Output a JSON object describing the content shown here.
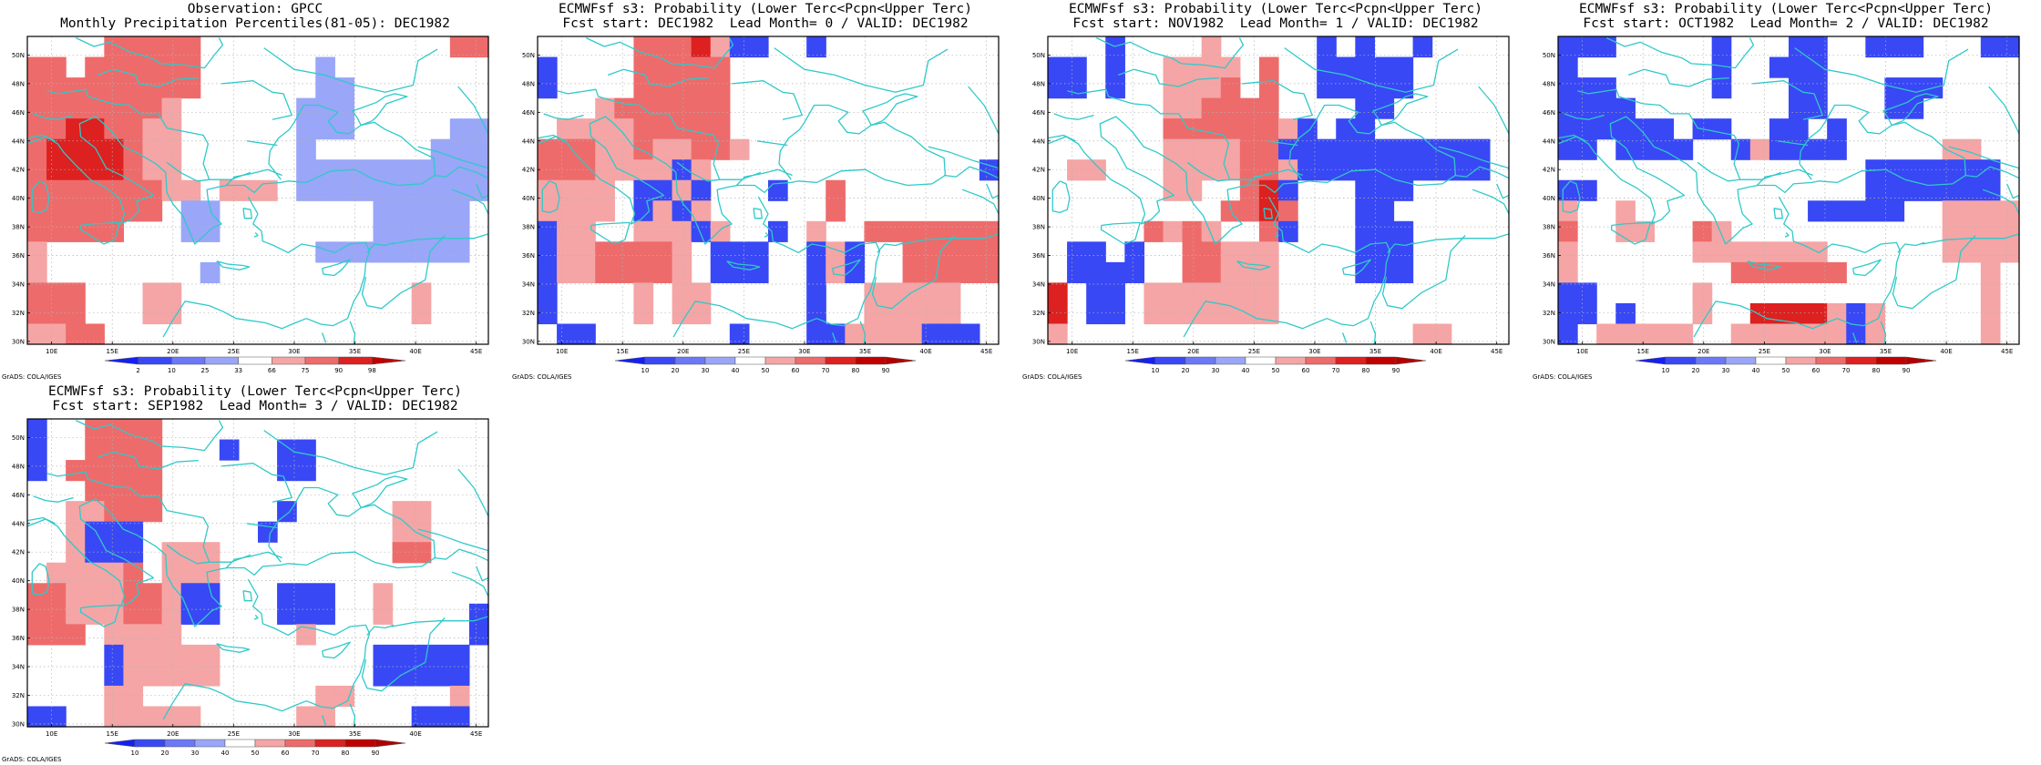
{
  "panels": [
    {
      "title1": "Observation: GPCC",
      "title2": "Monthly Precipitation Percentiles(81-05): DEC1982",
      "credit": "GrADS: COLA/IGES",
      "legend": {
        "labels": [
          "2",
          "10",
          "25",
          "33",
          "66",
          "75",
          "90",
          "98"
        ]
      },
      "cells": [
        "WWWWRRRRRWWWWWWWWWWWWWRR",
        "RRWRRRRRRWWWWWWLWWWWWWWW",
        "RRRRRRRRRWWWWWWLLWWWWWWW",
        "RRRRRRRPWWWWWWLLLWWWWWWW",
        "RRMMRRPPWWWWWWLLLWWWWWLL",
        "RMMMMRPPWWWWWWLWWWWWWLLL",
        "RMMMMRPPWWWWWWLLLLLLLLLL",
        "RRRRRRRPPWPPPWLLLLLLLLLL",
        "RRRRRRRWLLWWWWWWWWLLLLLW",
        "RRRRRWWWLLWWWWWWWWLLLLLW",
        "PWWWWWWWWWWWWWWLLLLLLLLW",
        "PWWWWWWWWLWWWWWWWWWWWWWW",
        "RRRWWWPPWWWWWWWWWWWWPWWW",
        "RRRWWWPPWWWWWWWWWWWWPWWW",
        "PPRRWWWWWWWWWWWWWWWWWWWW"
      ]
    },
    {
      "title1": "ECMWFsf s3: Probability (Lower Terc<Pcpn<Upper Terc)",
      "title2": "Fcst start: DEC1982  Lead Month= 0 / VALID: DEC1982",
      "credit": "GrADS: COLA/IGES",
      "legend": {
        "labels": [
          "10",
          "20",
          "30",
          "40",
          "50",
          "60",
          "70",
          "80",
          "90"
        ]
      },
      "cells": [
        "WWWWWRRRMPBBWWBWWWWWWWWW",
        "BWWWWRRRRRWWWWWWWWWWWWWW",
        "BWWWWRRRRRWWWWWWWWWWWWWW",
        "WWWPRRRRRRWWWWWWWWWWWWWW",
        "WPPPPRRRRRWWWWWWWWWWWWWW",
        "RRRPPRPPRRPWWWWWWWWWWWWW",
        "RRRPPPPBPWWWWWWWWWWWWWWB",
        "PPPPWBBPBWWWBWWRWWWWWWWW",
        "PPPPWBPBPWWWWWWRWWWWWWWW",
        "BPPWWPPPBPWWBWPWWRRRRRRR",
        "BPPRRRRPWBBBWWBPBWWRRRRR",
        "BPPRRRRPWBBBWWBPBWWRRRRR",
        "BWWWWPWPPWWWWWBWWPPPPPWW",
        "BWWWWPWPPWWWWWBWWPPPPPWW",
        "WBBWWWWWWWBWWWBBPPPPBBBW"
      ]
    },
    {
      "title1": "ECMWFsf s3: Probability (Lower Terc<Pcpn<Upper Terc)",
      "title2": "Fcst start: NOV1982  Lead Month= 1 / VALID: DEC1982",
      "credit": "GrADS: COLA/IGES",
      "legend": {
        "labels": [
          "10",
          "20",
          "30",
          "40",
          "50",
          "60",
          "70",
          "80",
          "90"
        ]
      },
      "cells": [
        "WWWBWWWWPWWWWWBWBWWBWWWW",
        "BBWBWWPPPPWRWWBBBBBWWWWW",
        "BBWBWWPPPRWRWWBBBBBWWWWW",
        "WWWWWWPPRRRRWWWWBBWWWWWW",
        "WWWWWWRRRRRRPBWBBWWWWWWW",
        "WWWWWWPPPPRRBBBBBBBBBBBW",
        "WPPWWWPPPPRRPBBBBBBBBBBW",
        "WWWWWWPPWWRMBWWWBBBWWWWW",
        "WWWWWWWWWRRMRWWWBBWWWWWW",
        "WWWWWRPRPWWRBWWWBBBWWWWW",
        "WBBWBWWRRPPPWWWWBBBWWWWW",
        "WBBBBWWRRPPPWWWWBBBWWWWW",
        "MWBBWPPPPPPPWWWWWWWWWWWW",
        "MWBBWPPPPPPPWWWWWWWWWWWW",
        "PWWWWWWWWWWWWWWWWWWPPWWW"
      ]
    },
    {
      "title1": "ECMWFsf s3: Probability (Lower Terc<Pcpn<Upper Terc)",
      "title2": "Fcst start: OCT1982  Lead Month= 2 / VALID: DEC1982",
      "credit": "GrADS: COLA/IGES",
      "legend": {
        "labels": [
          "10",
          "20",
          "30",
          "40",
          "50",
          "60",
          "70",
          "80",
          "90"
        ]
      },
      "cells": [
        "BBBWWWWWBWWWBBWWBBBWWWBB",
        "BWWWWWWWBWWBBBWWWWWWWWWW",
        "BBBWWWWWBWWWBBWWWBBBWWWW",
        "BBBBWWWWWWWWBBWWWBBWWWWW",
        "BBBBBBWBBWWBBWBWWWWWWWWW",
        "BBWBBBBWWBPBBBBWWWWWPPWW",
        "WWWWWWWWWWWWWWWWBBBBBBBW",
        "BBWWWWWWWWWWWWWWBBBBBBBW",
        "PWWPWWWWWWWWWBBBBBWWPPPP",
        "RWWPPWWRPWWWWWWWWWWWPPPP",
        "PWWWWWWPPPPPPPWWWWWWPPPP",
        "PWWWWWWWWRRRRRRWWWWWWWPW",
        "BBWWWWWPWWWWWWWWWWWWWWPW",
        "BBWBWWWPWWMMMMPBPWWWWWPW",
        "BWPPPPPWWPPPPPPBPWWWWWPW"
      ]
    },
    {
      "title1": "ECMWFsf s3: Probability (Lower Terc<Pcpn<Upper Terc)",
      "title2": "Fcst start: SEP1982  Lead Month= 3 / VALID: DEC1982",
      "credit": "GrADS: COLA/IGES",
      "legend": {
        "labels": [
          "10",
          "20",
          "30",
          "40",
          "50",
          "60",
          "70",
          "80",
          "90"
        ]
      },
      "cells": [
        "BWWRRRRWWWWWWWWWWWWWWWWW",
        "BWWRRRRWWWBWWBBWWWWWWWWW",
        "BWRRRRRWWWWWWBBWWWWWWWWW",
        "WWWRRRRWWWWWWWWWWWWWWWWW",
        "WWPPRRRWWWWWWBWWWWWPPWWW",
        "WWPBBBWWWWWWBWWWWWWPPWWW",
        "WWPBBBWPPPWWWWWWWWWRRWWW",
        "WPPPPRWPPPWWWWWWWWWWWWWW",
        "RRPPPRRPBBWWWBBBWWPWWWWW",
        "RRPPPRRPBBWWWBBBWWPWWWWB",
        "RRRWPPPPWWWWWWPWWWWWWWWB",
        "WWWWBPPPPPWWWWWWWWBBBBBW",
        "WWWWBPPPPPWWWWWWWWBBBBBW",
        "WWWWPPWWWWWWWWWPPWWWWWPW",
        "BBWWPPPPPWWWWWPPWWWWBBBW"
      ]
    }
  ],
  "axes": {
    "lon_labels": [
      "10E",
      "15E",
      "20E",
      "25E",
      "30E",
      "35E",
      "40E",
      "45E"
    ],
    "lat_labels": [
      "30N",
      "32N",
      "34N",
      "36N",
      "38N",
      "40N",
      "42N",
      "44N",
      "46N",
      "48N",
      "50N"
    ]
  },
  "palette": {
    "W": "#ffffff",
    "P": "#f5a5a5",
    "R": "#ee6b6b",
    "M": "#dd2020",
    "L": "#9aa6f8",
    "B": "#3848f5",
    "coast": "#2fc9c9",
    "grid": "#b4b4b4"
  }
}
